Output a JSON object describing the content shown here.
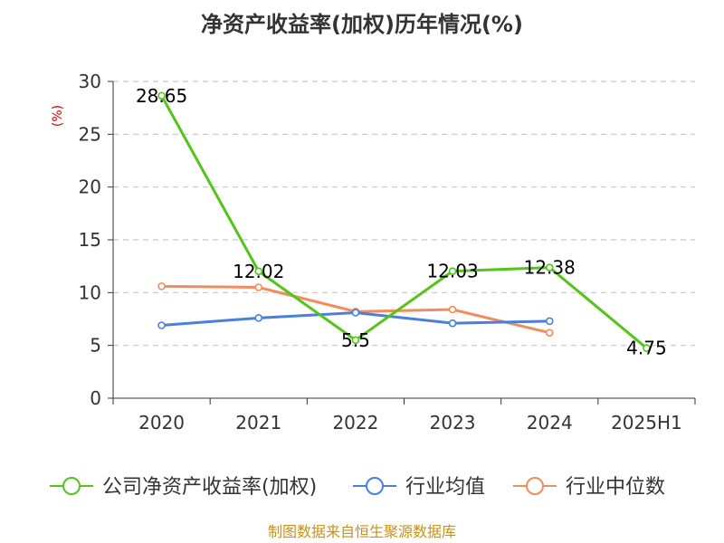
{
  "chart_data": {
    "type": "line",
    "title": "净资产收益率(加权)历年情况(%)",
    "ylabel": "(%)",
    "ylim": [
      0,
      30
    ],
    "yticks": [
      0,
      5,
      10,
      15,
      20,
      25,
      30
    ],
    "grid": true,
    "legend_position": "bottom",
    "categories": [
      "2020",
      "2021",
      "2022",
      "2023",
      "2024",
      "2025H1"
    ],
    "series": [
      {
        "name": "公司净资产收益率(加权)",
        "color": "#52c41a",
        "values": [
          28.65,
          12.02,
          5.5,
          12.03,
          12.38,
          4.75
        ],
        "show_labels": true
      },
      {
        "name": "行业均值",
        "color": "#4a7fdc",
        "values": [
          6.9,
          7.6,
          8.1,
          7.1,
          7.3,
          null
        ],
        "show_labels": false
      },
      {
        "name": "行业中位数",
        "color": "#f28c5c",
        "values": [
          10.6,
          10.5,
          8.2,
          8.4,
          6.2,
          null
        ],
        "show_labels": false
      }
    ]
  },
  "source": "制图数据来自恒生聚源数据库"
}
